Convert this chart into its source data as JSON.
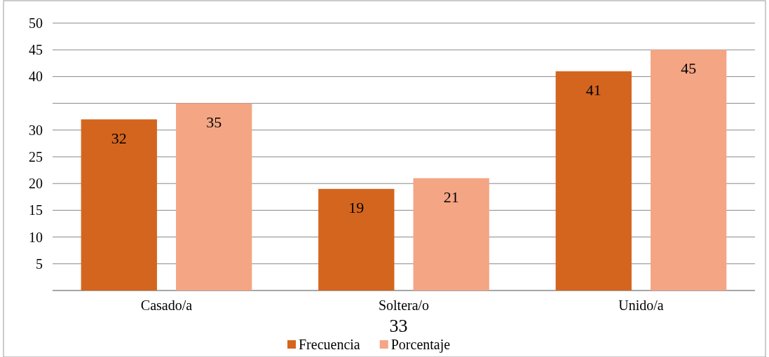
{
  "chart_data": {
    "type": "bar",
    "categories": [
      "Casado/a",
      "Soltera/o",
      "Unido/a"
    ],
    "series": [
      {
        "name": "Frecuencia",
        "color": "#d4651f",
        "values": [
          32,
          19,
          41
        ]
      },
      {
        "name": "Porcentaje",
        "color": "#f4a584",
        "values": [
          35,
          21,
          45
        ]
      }
    ],
    "ylim": [
      0,
      50
    ],
    "yticks": [
      {
        "value": 0,
        "label": null
      },
      5,
      10,
      15,
      20,
      25,
      30,
      {
        "value": 35,
        "label": null
      },
      40,
      45,
      50
    ],
    "grid": "y",
    "data_labels": true,
    "legend": "bottom",
    "annotations": [
      "33"
    ]
  }
}
